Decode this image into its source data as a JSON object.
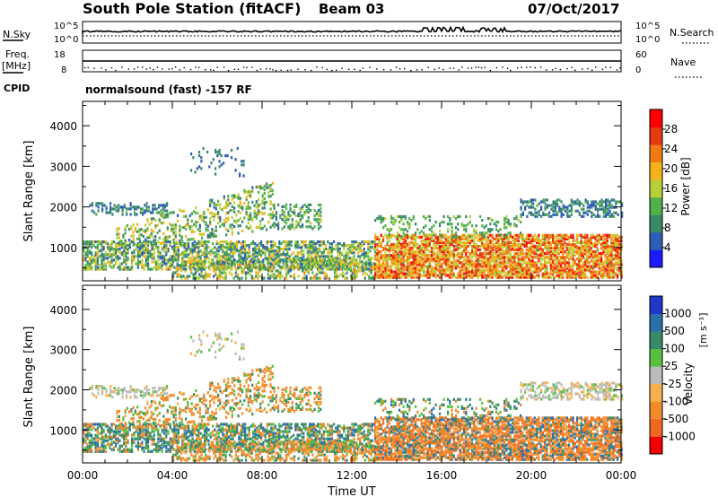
{
  "header": {
    "station": "South Pole Station (fitACF)",
    "beam": "Beam 03",
    "date": "07/Oct/2017"
  },
  "nsky_panel": {
    "left_label": "N.Sky",
    "right_label": "N.Search",
    "left_ticks": [
      "10^5",
      "10^0"
    ],
    "right_ticks": [
      "10^5",
      "10^0"
    ]
  },
  "freq_panel": {
    "left_label_1": "Freq.",
    "left_label_2": "[MHz]",
    "right_label": "Nave",
    "left_ticks": [
      "18",
      "8"
    ],
    "right_ticks": [
      "60",
      "0"
    ]
  },
  "cpid": {
    "label": "CPID",
    "text": "normalsound (fast) -157 RF"
  },
  "chart_data": [
    {
      "type": "heatmap",
      "title": "",
      "xlabel": "",
      "ylabel": "Slant Range [km]",
      "ylim": [
        180,
        4600
      ],
      "y_ticks": [
        "4000",
        "3000",
        "2000",
        "1000"
      ],
      "colorbar_label": "Power [dB]",
      "colorbar_ticks": [
        "28",
        "24",
        "20",
        "16",
        "12",
        "8",
        "4"
      ],
      "colors": [
        "#1a1aff",
        "#2d5db4",
        "#3a8a6a",
        "#52b04a",
        "#b8d038",
        "#f4b31c",
        "#f07b14",
        "#e43a10",
        "#ff0000"
      ]
    },
    {
      "type": "heatmap",
      "title": "",
      "xlabel": "Time UT",
      "ylabel": "Slant Range [km]",
      "ylim": [
        180,
        4600
      ],
      "y_ticks": [
        "4000",
        "3000",
        "2000",
        "1000"
      ],
      "x_ticks": [
        "00:00",
        "04:00",
        "08:00",
        "12:00",
        "16:00",
        "20:00",
        "00:00"
      ],
      "colorbar_label": "Velocity",
      "colorbar_unit": "[m s⁻¹]",
      "colorbar_ticks": [
        "1000",
        "500",
        "100",
        "25",
        "-25",
        "-100",
        "-500",
        "-1000"
      ],
      "colors": [
        "#2038c8",
        "#2a70a8",
        "#3a8a6a",
        "#58c040",
        "#bcbcbc",
        "#f6b04c",
        "#f28a2a",
        "#f06820",
        "#f00000"
      ]
    }
  ]
}
